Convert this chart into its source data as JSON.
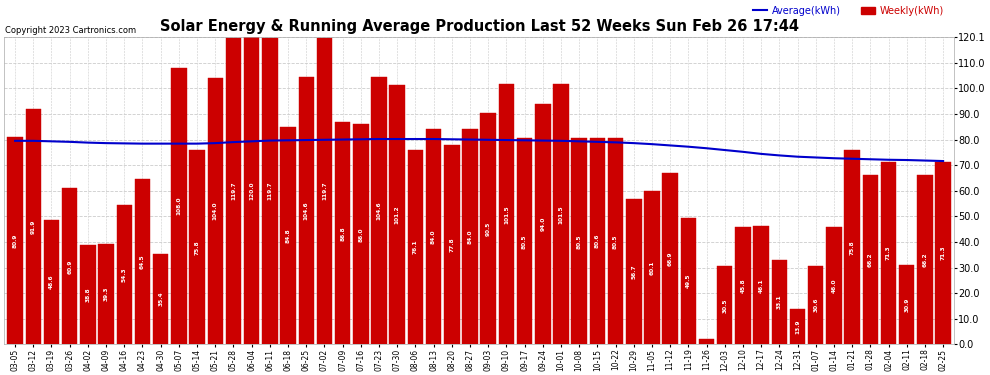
{
  "title": "Solar Energy & Running Average Production Last 52 Weeks Sun Feb 26 17:44",
  "copyright": "Copyright 2023 Cartronics.com",
  "legend_avg": "Average(kWh)",
  "legend_weekly": "Weekly(kWh)",
  "bar_color": "#cc0000",
  "bar_edge_color": "#cc0000",
  "avg_line_color": "#0000cc",
  "background_color": "#ffffff",
  "grid_color": "#cccccc",
  "ylim": [
    0,
    120.1
  ],
  "yticks": [
    0.0,
    10.0,
    20.0,
    30.0,
    40.0,
    50.0,
    60.0,
    70.0,
    80.0,
    90.0,
    100.0,
    110.0,
    120.1
  ],
  "categories": [
    "03-05",
    "03-12",
    "03-19",
    "03-26",
    "04-02",
    "04-09",
    "04-16",
    "04-23",
    "04-30",
    "05-07",
    "05-14",
    "05-21",
    "05-28",
    "06-04",
    "06-11",
    "06-18",
    "06-25",
    "07-02",
    "07-09",
    "07-16",
    "07-23",
    "07-30",
    "08-06",
    "08-13",
    "08-20",
    "08-27",
    "09-03",
    "09-10",
    "09-17",
    "09-24",
    "10-01",
    "10-08",
    "10-15",
    "10-22",
    "10-29",
    "11-05",
    "11-12",
    "11-19",
    "11-26",
    "12-03",
    "12-10",
    "12-17",
    "12-24",
    "12-31",
    "01-07",
    "01-14",
    "01-21",
    "01-28",
    "02-04",
    "02-11",
    "02-18",
    "02-25"
  ],
  "weekly_values": [
    80.9,
    91.9,
    48.6,
    60.9,
    38.8,
    39.3,
    54.3,
    64.5,
    35.4,
    108.0,
    75.8,
    104.0,
    119.7,
    120.0,
    119.7,
    84.8,
    104.6,
    119.7,
    86.8,
    86.0,
    104.6,
    101.2,
    76.1,
    84.0,
    77.8,
    84.0,
    90.5,
    101.5,
    80.5,
    94.0,
    101.5,
    80.5,
    80.6,
    80.5,
    56.7,
    60.1,
    66.9,
    49.5,
    1.928,
    30.5,
    45.8,
    46.1,
    33.1,
    13.9,
    30.6,
    46.0,
    75.8,
    66.2,
    71.3,
    30.9,
    66.2,
    71.3
  ],
  "avg_values": [
    79.5,
    79.5,
    79.3,
    79.1,
    78.8,
    78.6,
    78.5,
    78.4,
    78.4,
    78.4,
    78.4,
    78.6,
    79.0,
    79.3,
    79.6,
    79.7,
    79.8,
    79.9,
    80.0,
    80.1,
    80.2,
    80.2,
    80.2,
    80.2,
    80.1,
    80.0,
    79.9,
    79.8,
    79.7,
    79.6,
    79.5,
    79.3,
    79.1,
    78.9,
    78.6,
    78.2,
    77.7,
    77.2,
    76.6,
    75.9,
    75.2,
    74.4,
    73.8,
    73.3,
    73.0,
    72.7,
    72.5,
    72.3,
    72.1,
    72.0,
    71.8,
    71.6
  ]
}
